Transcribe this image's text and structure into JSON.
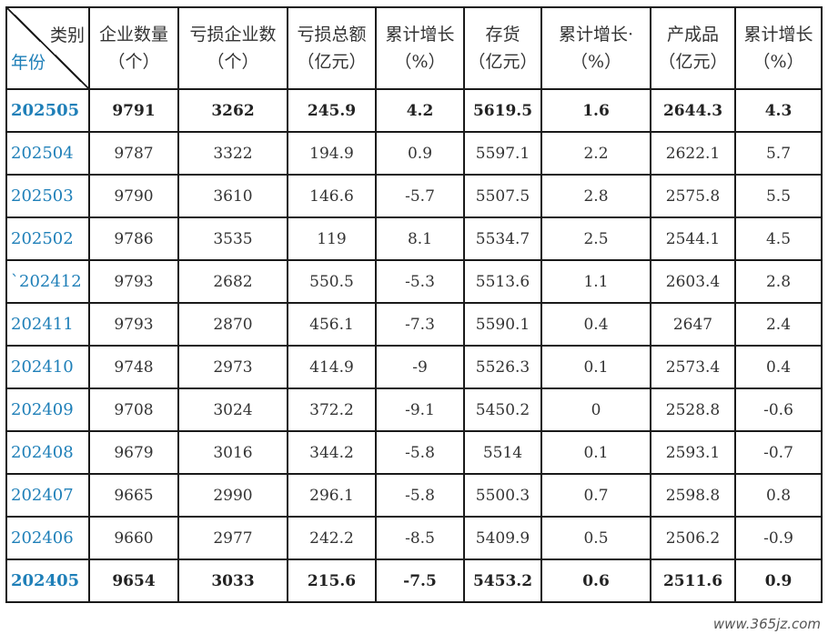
{
  "header": {
    "corner_category": "类别",
    "corner_year": "年份",
    "columns": [
      {
        "line1": "企业数量",
        "line2": "（个）"
      },
      {
        "line1": "亏损企业数",
        "line2": "（个）"
      },
      {
        "line1": "亏损总额",
        "line2": "（亿元）"
      },
      {
        "line1": "累计增长",
        "line2": "（%）"
      },
      {
        "line1": "存货",
        "line2": "（亿元）"
      },
      {
        "line1": "累计增长·",
        "line2": "（%）"
      },
      {
        "line1": "产成品",
        "line2": "（亿元）"
      },
      {
        "line1": "累计增长",
        "line2": "（%）"
      }
    ]
  },
  "rows": [
    {
      "year": "202505",
      "cells": [
        "9791",
        "3262",
        "245.9",
        "4.2",
        "5619.5",
        "1.6",
        "2644.3",
        "4.3"
      ]
    },
    {
      "year": "202504",
      "cells": [
        "9787",
        "3322",
        "194.9",
        "0.9",
        "5597.1",
        "2.2",
        "2622.1",
        "5.7"
      ]
    },
    {
      "year": "202503",
      "cells": [
        "9790",
        "3610",
        "146.6",
        "-5.7",
        "5507.5",
        "2.8",
        "2575.8",
        "5.5"
      ]
    },
    {
      "year": "202502",
      "cells": [
        "9786",
        "3535",
        "119",
        "8.1",
        "5534.7",
        "2.5",
        "2544.1",
        "4.5"
      ]
    },
    {
      "year": "`202412",
      "cells": [
        "9793",
        "2682",
        "550.5",
        "-5.3",
        "5513.6",
        "1.1",
        "2603.4",
        "2.8"
      ]
    },
    {
      "year": "202411",
      "cells": [
        "9793",
        "2870",
        "456.1",
        "-7.3",
        "5590.1",
        "0.4",
        "2647",
        "2.4"
      ]
    },
    {
      "year": "202410",
      "cells": [
        "9748",
        "2973",
        "414.9",
        "-9",
        "5526.3",
        "0.1",
        "2573.4",
        "0.4"
      ]
    },
    {
      "year": "202409",
      "cells": [
        "9708",
        "3024",
        "372.2",
        "-9.1",
        "5450.2",
        "0",
        "2528.8",
        "-0.6"
      ]
    },
    {
      "year": "202408",
      "cells": [
        "9679",
        "3016",
        "344.2",
        "-5.8",
        "5514",
        "0.1",
        "2593.1",
        "-0.7"
      ]
    },
    {
      "year": "202407",
      "cells": [
        "9665",
        "2990",
        "296.1",
        "-5.8",
        "5500.3",
        "0.7",
        "2598.8",
        "0.8"
      ]
    },
    {
      "year": "202406",
      "cells": [
        "9660",
        "2977",
        "242.2",
        "-8.5",
        "5409.9",
        "0.5",
        "2506.2",
        "-0.9"
      ]
    },
    {
      "year": "202405",
      "cells": [
        "9654",
        "3033",
        "215.6",
        "-7.5",
        "5453.2",
        "0.6",
        "2511.6",
        "0.9"
      ]
    }
  ],
  "bold_rows": [
    0,
    11
  ],
  "colors": {
    "year_text": "#1e7fb8",
    "border": "#1a1a1a",
    "cell_text": "#333333"
  },
  "watermark": "www.365jz.com"
}
